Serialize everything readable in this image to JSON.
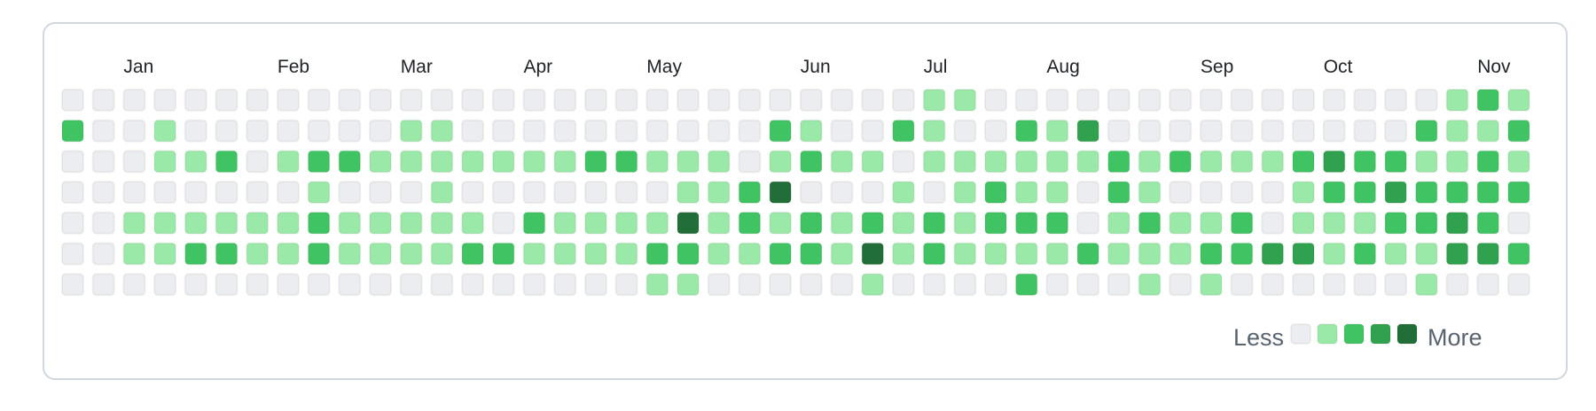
{
  "chart_data": {
    "type": "heatmap",
    "months": [
      "Jan",
      "Feb",
      "Mar",
      "Apr",
      "May",
      "Jun",
      "Jul",
      "Aug",
      "Sep",
      "Oct",
      "Nov"
    ],
    "month_start_weeks": [
      2,
      7,
      11,
      15,
      19,
      24,
      28,
      32,
      37,
      41,
      46
    ],
    "rows": 7,
    "weeks": 48,
    "levels": [
      "000000000000000000000000000011000000000000000121",
      "200100000001100000000002100210021300000000002112",
      "000112012211111112211101211011111121211123221121",
      "000000001000100000001124000101211021000012232222",
      "001111112111110211114121212121222012112011122320",
      "001122112111122111122112214121111211122331211332",
      "000000000000000000011000001000020001010000001000"
    ],
    "level_colors": [
      "#ebedf0",
      "#9be9a8",
      "#40c463",
      "#30a14e",
      "#216e39"
    ],
    "legend": {
      "less": "Less",
      "more": "More"
    }
  }
}
